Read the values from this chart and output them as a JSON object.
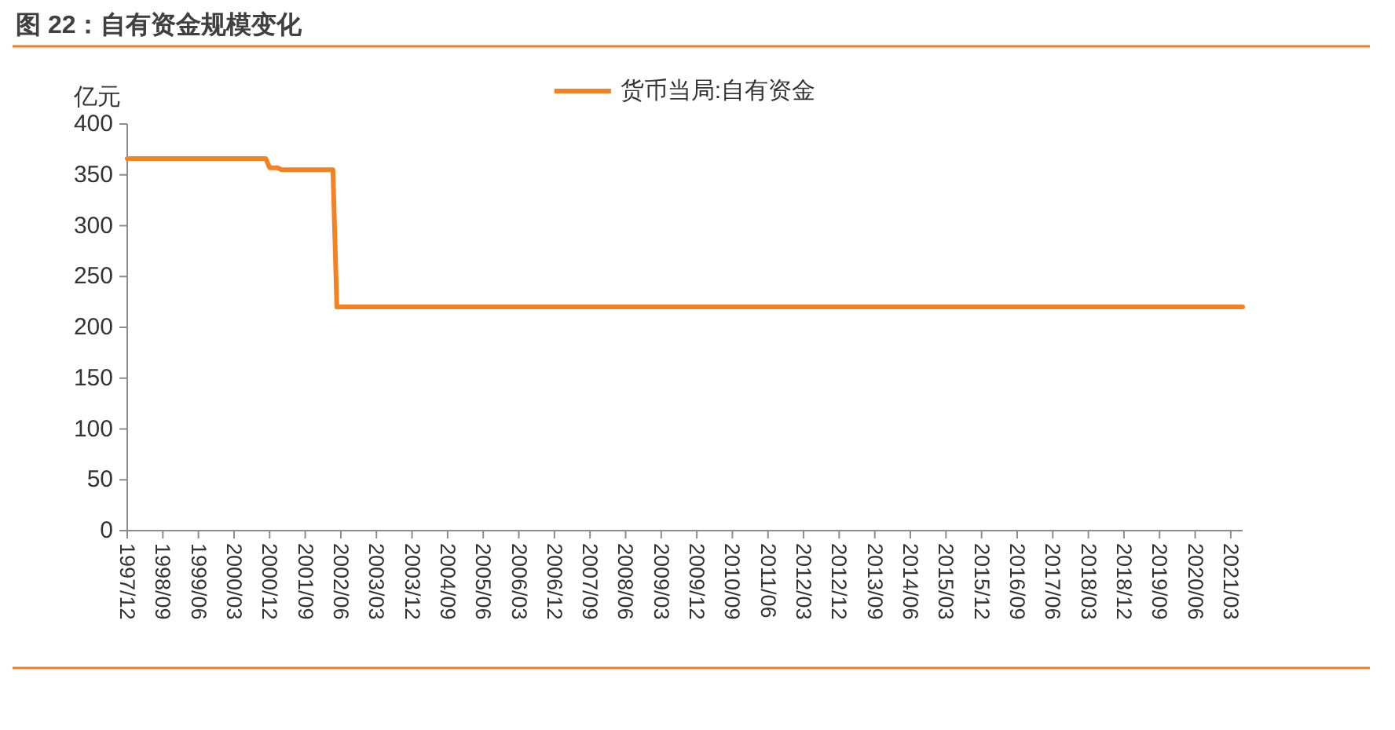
{
  "chart_data": {
    "type": "line",
    "title": "图 22：自有资金规模变化",
    "ylabel": "亿元",
    "x": [
      "1997-12",
      "2000-11",
      "2000-12",
      "2001-02",
      "2001-03",
      "2002-04",
      "2002-05",
      "2021-06"
    ],
    "series": [
      {
        "name": "货币当局:自有资金",
        "color": "#f58220",
        "values": [
          366,
          366,
          357,
          357,
          355,
          355,
          220,
          220
        ]
      }
    ],
    "xlim": [
      "1997-12",
      "2021-06"
    ],
    "xticks": [
      {
        "value": "1997-12",
        "label": "1997/12"
      },
      {
        "value": "1998-09",
        "label": "1998/09"
      },
      {
        "value": "1999-06",
        "label": "1999/06"
      },
      {
        "value": "2000-03",
        "label": "2000/03"
      },
      {
        "value": "2000-12",
        "label": "2000/12"
      },
      {
        "value": "2001-09",
        "label": "2001/09"
      },
      {
        "value": "2002-06",
        "label": "2002/06"
      },
      {
        "value": "2003-03",
        "label": "2003/03"
      },
      {
        "value": "2003-12",
        "label": "2003/12"
      },
      {
        "value": "2004-09",
        "label": "2004/09"
      },
      {
        "value": "2005-06",
        "label": "2005/06"
      },
      {
        "value": "2006-03",
        "label": "2006/03"
      },
      {
        "value": "2006-12",
        "label": "2006/12"
      },
      {
        "value": "2007-09",
        "label": "2007/09"
      },
      {
        "value": "2008-06",
        "label": "2008/06"
      },
      {
        "value": "2009-03",
        "label": "2009/03"
      },
      {
        "value": "2009-12",
        "label": "2009/12"
      },
      {
        "value": "2010-09",
        "label": "2010/09"
      },
      {
        "value": "2011-06",
        "label": "2011/06"
      },
      {
        "value": "2012-03",
        "label": "2012/03"
      },
      {
        "value": "2012-12",
        "label": "2012/12"
      },
      {
        "value": "2013-09",
        "label": "2013/09"
      },
      {
        "value": "2014-06",
        "label": "2014/06"
      },
      {
        "value": "2015-03",
        "label": "2015/03"
      },
      {
        "value": "2015-12",
        "label": "2015/12"
      },
      {
        "value": "2016-09",
        "label": "2016/09"
      },
      {
        "value": "2017-06",
        "label": "2017/06"
      },
      {
        "value": "2018-03",
        "label": "2018/03"
      },
      {
        "value": "2018-12",
        "label": "2018/12"
      },
      {
        "value": "2019-09",
        "label": "2019/09"
      },
      {
        "value": "2020-06",
        "label": "2020/06"
      },
      {
        "value": "2021-03",
        "label": "2021/03"
      }
    ],
    "ylim": [
      0,
      400
    ],
    "yticks": [
      0,
      50,
      100,
      150,
      200,
      250,
      300,
      350,
      400
    ],
    "legend": "top",
    "line_style": "solid"
  }
}
